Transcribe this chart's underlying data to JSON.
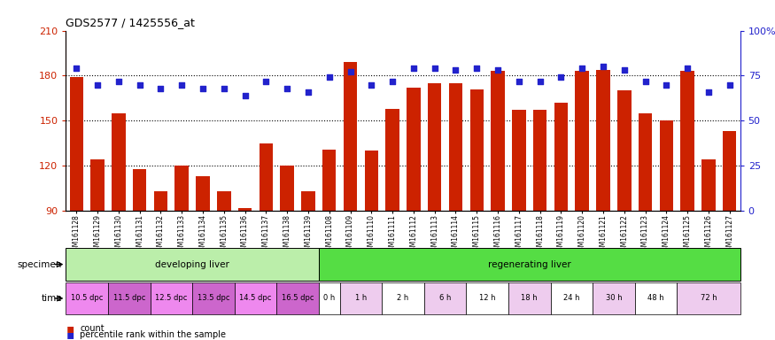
{
  "title": "GDS2577 / 1425556_at",
  "samples": [
    "GSM161128",
    "GSM161129",
    "GSM161130",
    "GSM161131",
    "GSM161132",
    "GSM161133",
    "GSM161134",
    "GSM161135",
    "GSM161136",
    "GSM161137",
    "GSM161138",
    "GSM161139",
    "GSM161108",
    "GSM161109",
    "GSM161110",
    "GSM161111",
    "GSM161112",
    "GSM161113",
    "GSM161114",
    "GSM161115",
    "GSM161116",
    "GSM161117",
    "GSM161118",
    "GSM161119",
    "GSM161120",
    "GSM161121",
    "GSM161122",
    "GSM161123",
    "GSM161124",
    "GSM161125",
    "GSM161126",
    "GSM161127"
  ],
  "counts": [
    179,
    124,
    155,
    118,
    103,
    120,
    113,
    103,
    92,
    135,
    120,
    103,
    131,
    189,
    130,
    158,
    172,
    175,
    175,
    171,
    183,
    157,
    157,
    162,
    183,
    184,
    170,
    155,
    150,
    183,
    124,
    143
  ],
  "percentiles": [
    79,
    70,
    72,
    70,
    68,
    70,
    68,
    68,
    64,
    72,
    68,
    66,
    74,
    77,
    70,
    72,
    79,
    79,
    78,
    79,
    78,
    72,
    72,
    74,
    79,
    80,
    78,
    72,
    70,
    79,
    66,
    70
  ],
  "ylim_left": [
    90,
    210
  ],
  "ylim_right": [
    0,
    100
  ],
  "yticks_left": [
    90,
    120,
    150,
    180,
    210
  ],
  "yticks_right": [
    0,
    25,
    50,
    75,
    100
  ],
  "bar_color": "#cc2200",
  "dot_color": "#2222cc",
  "specimen_groups": [
    {
      "label": "developing liver",
      "start": 0,
      "end": 12,
      "color": "#bbeeaa"
    },
    {
      "label": "regenerating liver",
      "start": 12,
      "end": 32,
      "color": "#55dd44"
    }
  ],
  "time_groups": [
    {
      "label": "10.5 dpc",
      "start": 0,
      "end": 2,
      "color": "#ee88ee"
    },
    {
      "label": "11.5 dpc",
      "start": 2,
      "end": 4,
      "color": "#cc66cc"
    },
    {
      "label": "12.5 dpc",
      "start": 4,
      "end": 6,
      "color": "#ee88ee"
    },
    {
      "label": "13.5 dpc",
      "start": 6,
      "end": 8,
      "color": "#cc66cc"
    },
    {
      "label": "14.5 dpc",
      "start": 8,
      "end": 10,
      "color": "#ee88ee"
    },
    {
      "label": "16.5 dpc",
      "start": 10,
      "end": 12,
      "color": "#cc66cc"
    },
    {
      "label": "0 h",
      "start": 12,
      "end": 13,
      "color": "#ffffff"
    },
    {
      "label": "1 h",
      "start": 13,
      "end": 15,
      "color": "#eeccee"
    },
    {
      "label": "2 h",
      "start": 15,
      "end": 17,
      "color": "#ffffff"
    },
    {
      "label": "6 h",
      "start": 17,
      "end": 19,
      "color": "#eeccee"
    },
    {
      "label": "12 h",
      "start": 19,
      "end": 21,
      "color": "#ffffff"
    },
    {
      "label": "18 h",
      "start": 21,
      "end": 23,
      "color": "#eeccee"
    },
    {
      "label": "24 h",
      "start": 23,
      "end": 25,
      "color": "#ffffff"
    },
    {
      "label": "30 h",
      "start": 25,
      "end": 27,
      "color": "#eeccee"
    },
    {
      "label": "48 h",
      "start": 27,
      "end": 29,
      "color": "#ffffff"
    },
    {
      "label": "72 h",
      "start": 29,
      "end": 32,
      "color": "#eeccee"
    }
  ],
  "background_color": "#ffffff"
}
